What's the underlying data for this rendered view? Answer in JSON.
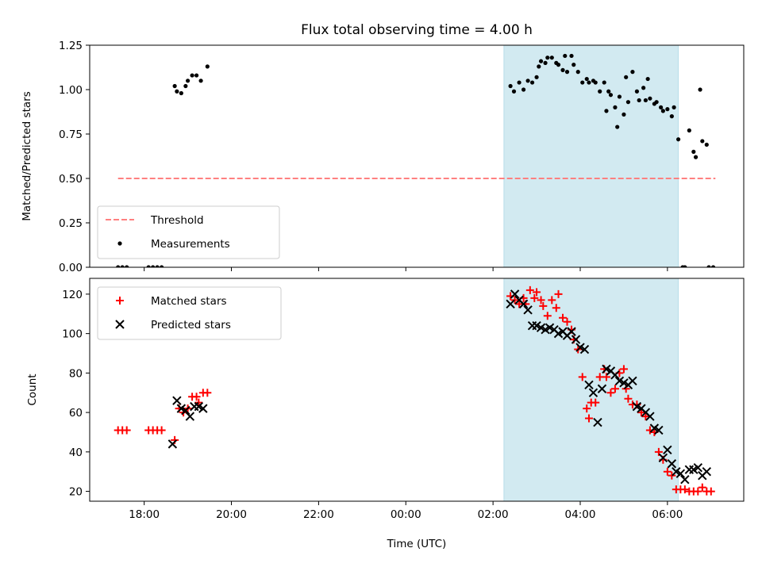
{
  "chart_data": [
    {
      "type": "scatter",
      "title": "Flux total observing time = 4.00 h",
      "xlabel": "",
      "ylabel": "Matched/Predicted stars",
      "x_unit": "hours since 00:00 UTC",
      "xlim": [
        -7.25,
        7.75
      ],
      "ylim": [
        0,
        1.25
      ],
      "yticks": [
        "0.00",
        "0.25",
        "0.50",
        "0.75",
        "1.00",
        "1.25"
      ],
      "shaded_span": [
        2.25,
        6.25
      ],
      "legend": {
        "location": "lower-left",
        "entries": [
          "Threshold",
          "Measurements"
        ]
      },
      "threshold": {
        "name": "Threshold",
        "y": 0.5,
        "x_range": [
          -6.6,
          7.1
        ],
        "color": "#ff8080",
        "style": "dashed"
      },
      "series": [
        {
          "name": "Measurements",
          "color": "#000000",
          "marker": "dot",
          "x": [
            -6.6,
            -6.5,
            -6.4,
            -5.9,
            -5.8,
            -5.7,
            -5.6,
            -5.3,
            -5.25,
            -5.15,
            -5.05,
            -5.0,
            -4.9,
            -4.8,
            -4.7,
            -4.55,
            2.4,
            2.48,
            2.6,
            2.7,
            2.8,
            2.9,
            3.0,
            3.05,
            3.1,
            3.2,
            3.25,
            3.35,
            3.45,
            3.5,
            3.6,
            3.65,
            3.7,
            3.8,
            3.85,
            3.95,
            4.05,
            4.15,
            4.2,
            4.3,
            4.35,
            4.45,
            4.55,
            4.6,
            4.65,
            4.7,
            4.8,
            4.85,
            4.9,
            5.0,
            5.05,
            5.1,
            5.2,
            5.3,
            5.35,
            5.45,
            5.5,
            5.55,
            5.6,
            5.7,
            5.75,
            5.85,
            5.9,
            6.0,
            6.1,
            6.15,
            6.25,
            6.35,
            6.4,
            6.5,
            6.6,
            6.65,
            6.75,
            6.8,
            6.9,
            6.95,
            7.05
          ],
          "y": [
            0,
            0,
            0,
            0,
            0,
            0,
            0,
            1.02,
            0.99,
            0.98,
            1.02,
            1.05,
            1.08,
            1.08,
            1.05,
            1.13,
            1.02,
            0.99,
            1.04,
            1.0,
            1.05,
            1.04,
            1.07,
            1.13,
            1.16,
            1.15,
            1.18,
            1.18,
            1.15,
            1.14,
            1.11,
            1.19,
            1.1,
            1.19,
            1.14,
            1.1,
            1.04,
            1.06,
            1.04,
            1.05,
            1.04,
            0.99,
            1.04,
            0.88,
            0.99,
            0.97,
            0.9,
            0.79,
            0.96,
            0.86,
            1.07,
            0.93,
            1.1,
            0.99,
            0.94,
            1.01,
            0.94,
            1.06,
            0.95,
            0.92,
            0.93,
            0.9,
            0.88,
            0.89,
            0.85,
            0.9,
            0.72,
            0,
            0,
            0.77,
            0.65,
            0.62,
            1.0,
            0.71,
            0.69,
            0,
            0
          ]
        }
      ]
    },
    {
      "type": "scatter",
      "title": "",
      "xlabel": "Time (UTC)",
      "ylabel": "Count",
      "x_unit": "hours since 00:00 UTC",
      "xlim": [
        -7.25,
        7.75
      ],
      "ylim": [
        15,
        128
      ],
      "xticks": [
        {
          "value": -6,
          "label": "18:00"
        },
        {
          "value": -4,
          "label": "20:00"
        },
        {
          "value": -2,
          "label": "22:00"
        },
        {
          "value": 0,
          "label": "00:00"
        },
        {
          "value": 2,
          "label": "02:00"
        },
        {
          "value": 4,
          "label": "04:00"
        },
        {
          "value": 6,
          "label": "06:00"
        }
      ],
      "yticks": [
        "20",
        "40",
        "60",
        "80",
        "100",
        "120"
      ],
      "shaded_span": [
        2.25,
        6.25
      ],
      "legend": {
        "location": "top-left",
        "entries": [
          "Matched stars",
          "Predicted stars"
        ]
      },
      "series": [
        {
          "name": "Matched stars",
          "color": "#ff0000",
          "marker": "plus",
          "x": [
            -6.6,
            -6.5,
            -6.4,
            -5.9,
            -5.8,
            -5.7,
            -5.6,
            -5.3,
            -5.2,
            -5.1,
            -5.0,
            -4.9,
            -4.8,
            -4.75,
            -4.65,
            -4.55,
            2.4,
            2.5,
            2.6,
            2.7,
            2.75,
            2.85,
            2.95,
            3.0,
            3.1,
            3.15,
            3.25,
            3.35,
            3.45,
            3.5,
            3.6,
            3.7,
            3.8,
            3.85,
            3.95,
            4.05,
            4.15,
            4.2,
            4.25,
            4.35,
            4.45,
            4.55,
            4.6,
            4.7,
            4.8,
            4.9,
            5.0,
            5.05,
            5.1,
            5.2,
            5.3,
            5.4,
            5.5,
            5.6,
            5.7,
            5.8,
            5.9,
            6.0,
            6.1,
            6.2,
            6.3,
            6.4,
            6.5,
            6.6,
            6.7,
            6.8,
            6.9,
            7.0
          ],
          "y": [
            51,
            51,
            51,
            51,
            51,
            51,
            51,
            46,
            62,
            60,
            62,
            68,
            68,
            65,
            70,
            70,
            119,
            117,
            115,
            118,
            115,
            122,
            118,
            121,
            117,
            114,
            109,
            117,
            113,
            120,
            108,
            106,
            102,
            97,
            92,
            78,
            62,
            57,
            65,
            65,
            78,
            82,
            78,
            70,
            72,
            80,
            82,
            72,
            67,
            64,
            64,
            60,
            58,
            51,
            50,
            40,
            36,
            30,
            28,
            21,
            21,
            21,
            20,
            20,
            20,
            22,
            20,
            20
          ]
        },
        {
          "name": "Predicted stars",
          "color": "#000000",
          "marker": "x",
          "x": [
            -5.35,
            -5.25,
            -5.15,
            -5.05,
            -4.95,
            -4.85,
            -4.75,
            -4.65,
            2.4,
            2.5,
            2.6,
            2.7,
            2.8,
            2.9,
            3.0,
            3.1,
            3.2,
            3.3,
            3.4,
            3.5,
            3.6,
            3.7,
            3.8,
            3.9,
            4.0,
            4.1,
            4.2,
            4.3,
            4.4,
            4.5,
            4.6,
            4.7,
            4.8,
            4.9,
            5.0,
            5.1,
            5.2,
            5.3,
            5.4,
            5.5,
            5.6,
            5.7,
            5.8,
            5.9,
            6.0,
            6.1,
            6.2,
            6.3,
            6.4,
            6.5,
            6.6,
            6.7,
            6.8,
            6.9
          ],
          "y": [
            44,
            66,
            62,
            61,
            58,
            63,
            63,
            62,
            115,
            120,
            117,
            115,
            112,
            104,
            104,
            103,
            102,
            103,
            102,
            100,
            101,
            99,
            101,
            97,
            93,
            92,
            74,
            70,
            55,
            72,
            82,
            81,
            79,
            76,
            75,
            74,
            76,
            63,
            62,
            60,
            58,
            52,
            51,
            37,
            41,
            34,
            30,
            29,
            26,
            31,
            31,
            32,
            28,
            30
          ]
        }
      ]
    }
  ]
}
